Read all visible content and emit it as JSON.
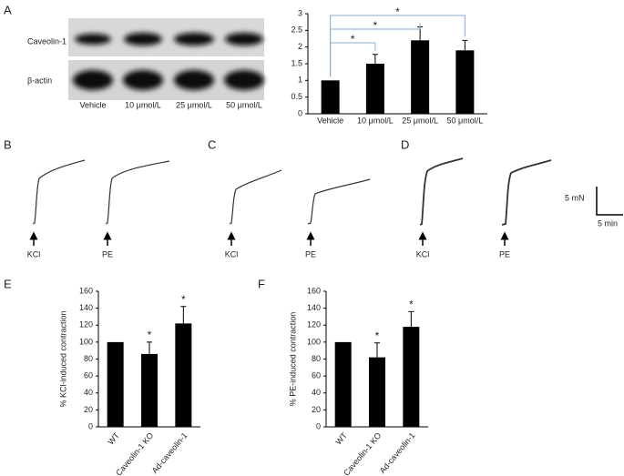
{
  "panels": [
    "A",
    "B",
    "C",
    "D",
    "E",
    "F"
  ],
  "blot": {
    "rows": [
      "Caveolin-1",
      "β-actin"
    ],
    "lanes": [
      "Vehicle",
      "10 μmol/L",
      "25 μmol/L",
      "50 μmol/L"
    ]
  },
  "traces": {
    "stimuli": [
      "KCl",
      "PE",
      "KCl",
      "PE",
      "KCl",
      "PE"
    ],
    "scale_force": "5 mN",
    "scale_time": "5 min"
  },
  "chart_data": [
    {
      "type": "bar",
      "categories": [
        "Vehicle",
        "10 μmol/L",
        "25 μmol/L",
        "50 μmol/L"
      ],
      "values": [
        1,
        1.5,
        2.2,
        1.9
      ],
      "errors": [
        0,
        0.28,
        0.4,
        0.3
      ],
      "significance": [
        null,
        "*",
        "*",
        "*"
      ],
      "color": "#000000",
      "ylim": [
        0,
        3
      ],
      "yticks": [
        0,
        0.5,
        1,
        1.5,
        2,
        2.5,
        3
      ]
    },
    {
      "type": "bar",
      "y_label": "% KCl-induced contraction",
      "categories": [
        "WT",
        "Caveolin-1 KO",
        "Ad-caveolin-1"
      ],
      "values": [
        100,
        86,
        122
      ],
      "errors": [
        0,
        14,
        20
      ],
      "significance": [
        null,
        "*",
        "*"
      ],
      "color": "#000000",
      "ylim": [
        0,
        160
      ],
      "yticks": [
        0,
        20,
        40,
        60,
        80,
        100,
        120,
        140,
        160
      ]
    },
    {
      "type": "bar",
      "y_label": "% PE-induced contraction",
      "categories": [
        "WT",
        "Caveolin-1 KO",
        "Ad-caveolin-1"
      ],
      "values": [
        100,
        82,
        118
      ],
      "errors": [
        0,
        17,
        18
      ],
      "significance": [
        null,
        "*",
        "*"
      ],
      "color": "#000000",
      "ylim": [
        0,
        160
      ],
      "yticks": [
        0,
        20,
        40,
        60,
        80,
        100,
        120,
        140,
        160
      ]
    }
  ]
}
